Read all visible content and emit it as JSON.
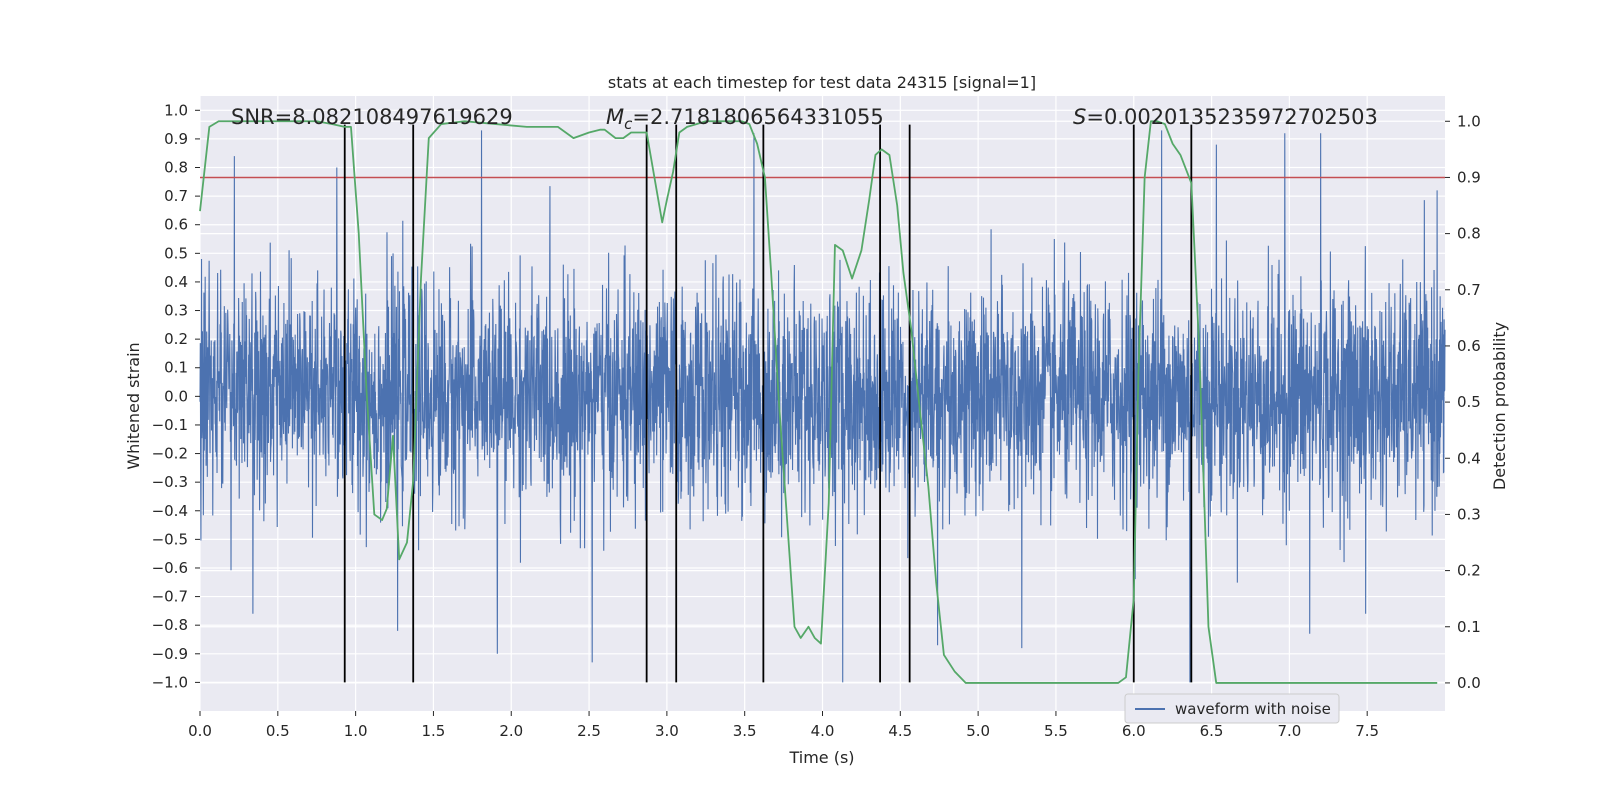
{
  "chart_data": {
    "type": "line",
    "title": "stats at each timestep for test data 24315 [signal=1]",
    "xlabel": "Time (s)",
    "ylabel_left": "Whitened strain",
    "ylabel_right": "Detection probability",
    "xlim": [
      0,
      8.0
    ],
    "ylim_left": [
      -1.1,
      1.05
    ],
    "ylim_right": [
      -0.05,
      1.045
    ],
    "x_ticks": [
      0.0,
      0.5,
      1.0,
      1.5,
      2.0,
      2.5,
      3.0,
      3.5,
      4.0,
      4.5,
      5.0,
      5.5,
      6.0,
      6.5,
      7.0,
      7.5
    ],
    "x_tick_labels": [
      "0.0",
      "0.5",
      "1.0",
      "1.5",
      "2.0",
      "2.5",
      "3.0",
      "3.5",
      "4.0",
      "4.5",
      "5.0",
      "5.5",
      "6.0",
      "6.5",
      "7.0",
      "7.5"
    ],
    "y_left_ticks": [
      1.0,
      0.9,
      0.8,
      0.7,
      0.6,
      0.5,
      0.4,
      0.3,
      0.2,
      0.1,
      0.0,
      -0.1,
      -0.2,
      -0.3,
      -0.4,
      -0.5,
      -0.6,
      -0.7,
      -0.8,
      -0.9,
      -1.0
    ],
    "y_left_tick_labels": [
      "1.0",
      "0.9",
      "0.8",
      "0.7",
      "0.6",
      "0.5",
      "0.4",
      "0.3",
      "0.2",
      "0.1",
      "0.0",
      "−0.1",
      "−0.2",
      "−0.3",
      "−0.4",
      "−0.5",
      "−0.6",
      "−0.7",
      "−0.8",
      "−0.9",
      "−1.0"
    ],
    "y_right_ticks": [
      1.0,
      0.9,
      0.8,
      0.7,
      0.6,
      0.5,
      0.4,
      0.3,
      0.2,
      0.1,
      0.0
    ],
    "y_right_tick_labels": [
      "1.0",
      "0.9",
      "0.8",
      "0.7",
      "0.6",
      "0.5",
      "0.4",
      "0.3",
      "0.2",
      "0.1",
      "0.0"
    ],
    "annotations": {
      "snr": "SNR=8.082108497619629",
      "mc_symbol": "M",
      "mc_subscript": "c",
      "mc_value": "=2.7181806564331055",
      "s_symbol": "S",
      "s_value": "=0.0020135235972702503"
    },
    "legend": {
      "label": "waveform with noise",
      "position": "lower-right"
    },
    "threshold_line": {
      "axis": "right",
      "value": 0.9,
      "color": "#c44e52"
    },
    "vertical_lines_x": [
      0.93,
      1.37,
      2.87,
      3.06,
      3.62,
      4.37,
      4.56,
      6.0,
      6.37
    ],
    "vertical_lines_range": [
      -1.0,
      0.95
    ],
    "waveform": {
      "name": "waveform with noise",
      "color": "#4c72b0",
      "x_range": [
        0,
        8.0
      ],
      "approx_samples": 4096,
      "typical_amplitude": 0.35,
      "max_abs_amplitude": 1.0,
      "extreme_peaks": [
        {
          "x": 0.22,
          "y": 0.84
        },
        {
          "x": 0.88,
          "y": 0.8
        },
        {
          "x": 1.37,
          "y": 0.9
        },
        {
          "x": 1.81,
          "y": 0.93
        },
        {
          "x": 3.56,
          "y": 0.92
        },
        {
          "x": 6.18,
          "y": 0.93
        },
        {
          "x": 6.53,
          "y": 0.88
        },
        {
          "x": 6.97,
          "y": 0.92
        },
        {
          "x": 7.2,
          "y": 0.92
        },
        {
          "x": 7.95,
          "y": 0.72
        },
        {
          "x": 1.27,
          "y": -0.82
        },
        {
          "x": 1.91,
          "y": -0.9
        },
        {
          "x": 2.52,
          "y": -0.93
        },
        {
          "x": 4.13,
          "y": -1.0
        },
        {
          "x": 4.74,
          "y": -0.87
        },
        {
          "x": 5.28,
          "y": -0.88
        },
        {
          "x": 6.36,
          "y": -1.0
        },
        {
          "x": 7.13,
          "y": -0.83
        },
        {
          "x": 0.34,
          "y": -0.76
        },
        {
          "x": 7.49,
          "y": -0.76
        }
      ]
    },
    "series": [
      {
        "name": "Detection probability",
        "axis": "right",
        "color": "#55a868",
        "x": [
          0.0,
          0.06,
          0.12,
          0.2,
          0.3,
          0.45,
          0.6,
          0.75,
          0.85,
          0.93,
          0.97,
          1.02,
          1.07,
          1.12,
          1.17,
          1.2,
          1.24,
          1.28,
          1.33,
          1.37,
          1.42,
          1.47,
          1.55,
          1.7,
          1.9,
          2.1,
          2.3,
          2.4,
          2.5,
          2.57,
          2.6,
          2.67,
          2.72,
          2.77,
          2.87,
          2.92,
          2.97,
          3.0,
          3.04,
          3.08,
          3.13,
          3.19,
          3.25,
          3.32,
          3.4,
          3.48,
          3.53,
          3.58,
          3.63,
          3.67,
          3.72,
          3.77,
          3.82,
          3.86,
          3.91,
          3.95,
          3.99,
          4.04,
          4.08,
          4.13,
          4.19,
          4.25,
          4.3,
          4.34,
          4.38,
          4.43,
          4.48,
          4.52,
          4.57,
          4.62,
          4.68,
          4.73,
          4.78,
          4.85,
          4.92,
          5.0,
          5.1,
          5.3,
          5.45,
          5.55,
          5.65,
          5.75,
          5.85,
          5.9,
          5.95,
          6.0,
          6.03,
          6.07,
          6.11,
          6.15,
          6.2,
          6.25,
          6.3,
          6.37,
          6.42,
          6.48,
          6.53,
          6.6,
          6.8,
          7.0,
          7.3,
          7.6,
          7.95
        ],
        "y": [
          0.84,
          0.99,
          1.0,
          1.0,
          1.0,
          1.0,
          1.0,
          1.0,
          0.995,
          0.99,
          0.99,
          0.8,
          0.52,
          0.3,
          0.29,
          0.31,
          0.44,
          0.22,
          0.25,
          0.36,
          0.72,
          0.97,
          0.995,
          1.0,
          0.995,
          0.99,
          0.99,
          0.97,
          0.98,
          0.985,
          0.985,
          0.97,
          0.97,
          0.98,
          0.98,
          0.9,
          0.82,
          0.86,
          0.91,
          0.98,
          0.99,
          0.995,
          1.0,
          1.0,
          1.0,
          1.0,
          0.995,
          0.96,
          0.9,
          0.73,
          0.5,
          0.3,
          0.1,
          0.08,
          0.1,
          0.08,
          0.07,
          0.32,
          0.78,
          0.77,
          0.72,
          0.77,
          0.86,
          0.94,
          0.95,
          0.94,
          0.85,
          0.73,
          0.63,
          0.5,
          0.35,
          0.18,
          0.05,
          0.02,
          0.0,
          0.0,
          0.0,
          0.0,
          0.0,
          0.0,
          0.0,
          0.0,
          0.0,
          0.0,
          0.01,
          0.15,
          0.55,
          0.9,
          1.0,
          1.0,
          0.995,
          0.96,
          0.94,
          0.89,
          0.6,
          0.1,
          0.0,
          0.0,
          0.0,
          0.0,
          0.0,
          0.0,
          0.0
        ]
      }
    ]
  }
}
